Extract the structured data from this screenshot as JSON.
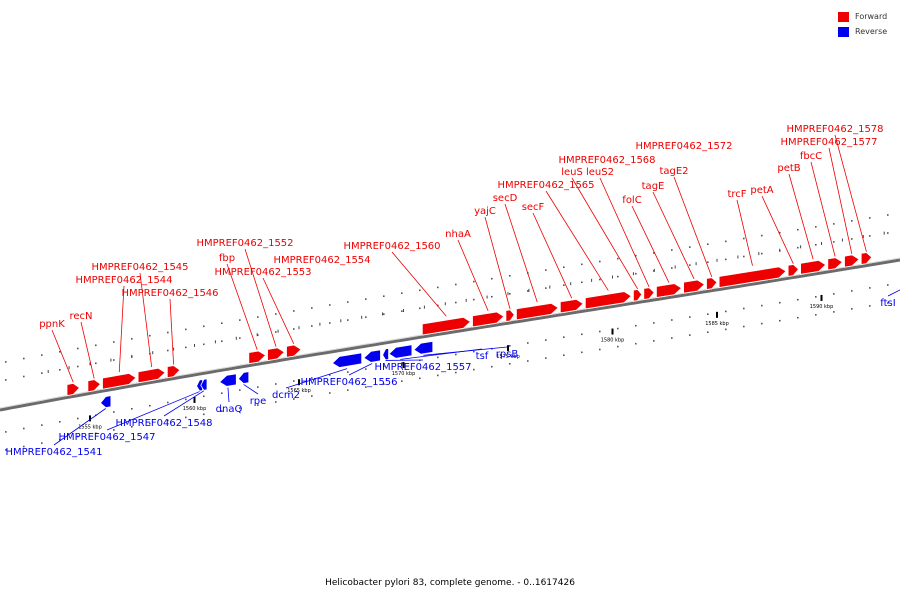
{
  "legend": [
    {
      "label": "Forward",
      "color": "#ee0000"
    },
    {
      "label": "Reverse",
      "color": "#0000ee"
    }
  ],
  "caption": "Helicobacter pylori 83, complete genome. - 0..1617426",
  "colors": {
    "forward": "#ee0000",
    "reverse": "#0000ee",
    "backbone": "#777777"
  },
  "ticks": [
    {
      "kbp": 1555,
      "label": "1555 kbp"
    },
    {
      "kbp": 1560,
      "label": "1560 kbp"
    },
    {
      "kbp": 1565,
      "label": "1565 kbp"
    },
    {
      "kbp": 1570,
      "label": "1570 kbp"
    },
    {
      "kbp": 1575,
      "label": "1575 kbp"
    },
    {
      "kbp": 1580,
      "label": "1580 kbp"
    },
    {
      "kbp": 1585,
      "label": "1585 kbp"
    },
    {
      "kbp": 1590,
      "label": "1590 kbp"
    }
  ],
  "forward_genes": [
    {
      "label": "ppnK",
      "start": 1553.9,
      "end": 1554.5
    },
    {
      "label": "recN",
      "start": 1554.9,
      "end": 1555.5
    },
    {
      "label": "HMPREF0462_1544",
      "start": 1555.6,
      "end": 1557.2
    },
    {
      "label": "HMPREF0462_1545",
      "start": 1557.3,
      "end": 1558.6
    },
    {
      "label": "HMPREF0462_1546",
      "start": 1558.7,
      "end": 1559.3
    },
    {
      "label": "fbp",
      "start": 1562.6,
      "end": 1563.4
    },
    {
      "label": "HMPREF0462_1552",
      "start": 1563.5,
      "end": 1564.3
    },
    {
      "label": "HMPREF0462_1553",
      "start": 1564.4,
      "end": 1565.1
    },
    {
      "label": "HMPREF0462_1560",
      "start": 1570.9,
      "end": 1573.2
    },
    {
      "label": "nhaA",
      "start": 1573.3,
      "end": 1574.8
    },
    {
      "label": "yajC",
      "start": 1574.9,
      "end": 1575.3
    },
    {
      "label": "secD",
      "start": 1575.4,
      "end": 1577.4
    },
    {
      "label": "secF",
      "start": 1577.5,
      "end": 1578.6
    },
    {
      "label": "HMPREF0462_1565",
      "start": 1578.7,
      "end": 1580.9
    },
    {
      "label": "leuS",
      "start": 1581.0,
      "end": 1581.4
    },
    {
      "label": "leuS2",
      "start": 1581.5,
      "end": 1582.0
    },
    {
      "label": "folC",
      "start": 1582.1,
      "end": 1583.3
    },
    {
      "label": "tagE",
      "start": 1583.4,
      "end": 1584.4
    },
    {
      "label": "tagE2",
      "start": 1584.5,
      "end": 1585.0
    },
    {
      "label": "trcF",
      "start": 1585.1,
      "end": 1588.3
    },
    {
      "label": "petA",
      "start": 1588.4,
      "end": 1588.9
    },
    {
      "label": "petB",
      "start": 1589.0,
      "end": 1590.2
    },
    {
      "label": "fbcC",
      "start": 1590.3,
      "end": 1591.0
    },
    {
      "label": "HMPREF0462_1577",
      "start": 1591.1,
      "end": 1591.8
    },
    {
      "label": "HMPREF0462_1578",
      "start": 1591.9,
      "end": 1592.4
    }
  ],
  "reverse_genes": [
    {
      "label": "HMPREF0462_1541",
      "start": 1555.5,
      "end": 1556.0
    },
    {
      "label": "HMPREF0462_1547",
      "start": 1560.1,
      "end": 1560.2
    },
    {
      "label": "HMPREF0462_1548",
      "start": 1560.3,
      "end": 1560.6
    },
    {
      "label": "dnaQ",
      "start": 1561.2,
      "end": 1562.0
    },
    {
      "label": "rpe",
      "start": 1562.1,
      "end": 1562.6
    },
    {
      "label": "dcm2",
      "start": 1566.6,
      "end": 1568.0
    },
    {
      "label": "HMPREF0462_1556",
      "start": 1568.1,
      "end": 1568.9
    },
    {
      "label": "HMPREF0462_1557",
      "start": 1569.0,
      "end": 1569.2
    },
    {
      "label": "tsf",
      "start": 1569.3,
      "end": 1570.4
    },
    {
      "label": "rpsB",
      "start": 1570.5,
      "end": 1571.4
    },
    {
      "label": "ftsI",
      "start": 1594.4,
      "end": 1596.0
    }
  ],
  "labels": {
    "forward": [
      {
        "gene": "ppnK",
        "text": "ppnK"
      },
      {
        "gene": "recN",
        "text": "recN"
      },
      {
        "gene": "HMPREF0462_1544",
        "text": "HMPREF0462_1544"
      },
      {
        "gene": "HMPREF0462_1545",
        "text": "HMPREF0462_1545"
      },
      {
        "gene": "HMPREF0462_1546",
        "text": "HMPREF0462_1546"
      },
      {
        "gene": "HMPREF0462_1552",
        "text": "HMPREF0462_1552"
      },
      {
        "gene": "fbp",
        "text": "fbp"
      },
      {
        "gene": "HMPREF0462_1553",
        "text": "HMPREF0462_1553"
      },
      {
        "gene": "HMPREF0462_1554",
        "text": "HMPREF0462_1554"
      },
      {
        "gene": "HMPREF0462_1560",
        "text": "HMPREF0462_1560"
      },
      {
        "gene": "nhaA",
        "text": "nhaA"
      },
      {
        "gene": "yajC",
        "text": "yajC"
      },
      {
        "gene": "secD",
        "text": "secD"
      },
      {
        "gene": "secF",
        "text": "secF"
      },
      {
        "gene": "HMPREF0462_1565",
        "text": "HMPREF0462_1565"
      },
      {
        "gene": "leuS",
        "text": "leuS"
      },
      {
        "gene": "leuS2",
        "text": "leuS2"
      },
      {
        "gene": "HMPREF0462_1568",
        "text": "HMPREF0462_1568"
      },
      {
        "gene": "folC",
        "text": "folC"
      },
      {
        "gene": "tagE",
        "text": "tagE"
      },
      {
        "gene": "tagE2",
        "text": "tagE2"
      },
      {
        "gene": "HMPREF0462_1572",
        "text": "HMPREF0462_1572"
      },
      {
        "gene": "trcF",
        "text": "trcF"
      },
      {
        "gene": "petA",
        "text": "petA"
      },
      {
        "gene": "petB",
        "text": "petB"
      },
      {
        "gene": "fbcC",
        "text": "fbcC"
      },
      {
        "gene": "HMPREF0462_1577",
        "text": "HMPREF0462_1577"
      },
      {
        "gene": "HMPREF0462_1578",
        "text": "HMPREF0462_1578"
      }
    ],
    "reverse": [
      {
        "gene": "HMPREF0462_1541",
        "text": "HMPREF0462_1541"
      },
      {
        "gene": "HMPREF0462_1547",
        "text": "HMPREF0462_1547"
      },
      {
        "gene": "HMPREF0462_1548",
        "text": "HMPREF0462_1548"
      },
      {
        "gene": "dnaQ",
        "text": "dnaQ"
      },
      {
        "gene": "rpe",
        "text": "rpe"
      },
      {
        "gene": "dcm2",
        "text": "dcm2"
      },
      {
        "gene": "HMPREF0462_1556",
        "text": "HMPREF0462_1556"
      },
      {
        "gene": "HMPREF0462_1557",
        "text": "HMPREF0462_1557"
      },
      {
        "gene": "tsf",
        "text": "tsf"
      },
      {
        "gene": "rpsB",
        "text": "rpsB"
      },
      {
        "gene": "ftsI",
        "text": "ftsI"
      }
    ]
  }
}
